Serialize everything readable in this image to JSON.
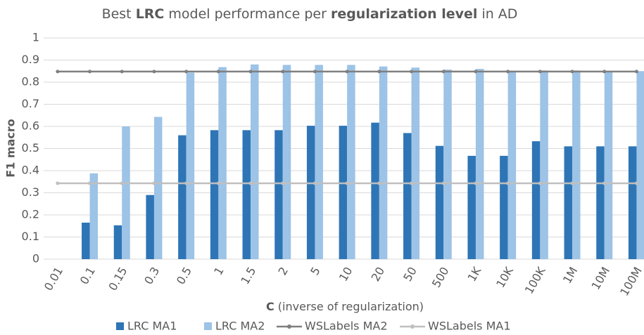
{
  "chart_data": {
    "type": "bar",
    "title": [
      "Best ",
      "LRC",
      " model performance per ",
      "regularization level",
      " in AD"
    ],
    "x_label": [
      "C",
      " (inverse of regularization)"
    ],
    "y_label": "F1 macro",
    "categories": [
      "0.01",
      "0.1",
      "0.15",
      "0.3",
      "0.5",
      "1",
      "1.5",
      "2",
      "5",
      "10",
      "20",
      "50",
      "500",
      "1K",
      "10K",
      "100K",
      "1M",
      "10M",
      "100M"
    ],
    "series": [
      {
        "name": "LRC MA1",
        "type": "bar",
        "color": "#2e75b6",
        "values": [
          null,
          0.165,
          0.153,
          0.29,
          0.56,
          0.583,
          0.583,
          0.583,
          0.603,
          0.603,
          0.617,
          0.57,
          0.512,
          0.467,
          0.467,
          0.533,
          0.51,
          0.51,
          0.51
        ]
      },
      {
        "name": "LRC MA2",
        "type": "bar",
        "color": "#9dc3e6",
        "values": [
          null,
          0.388,
          0.6,
          0.643,
          0.843,
          0.868,
          0.88,
          0.878,
          0.878,
          0.878,
          0.871,
          0.866,
          0.857,
          0.86,
          0.852,
          0.853,
          0.853,
          0.85,
          0.85
        ]
      },
      {
        "name": "WSLabels MA2",
        "type": "line",
        "color": "#7f7f7f",
        "values": [
          0.848,
          0.848,
          0.848,
          0.848,
          0.848,
          0.848,
          0.848,
          0.848,
          0.848,
          0.848,
          0.848,
          0.848,
          0.848,
          0.848,
          0.848,
          0.848,
          0.848,
          0.848,
          0.848
        ]
      },
      {
        "name": "WSLabels MA1",
        "type": "line",
        "color": "#bfbfbf",
        "values": [
          0.343,
          0.343,
          0.343,
          0.343,
          0.343,
          0.343,
          0.343,
          0.343,
          0.343,
          0.343,
          0.343,
          0.343,
          0.343,
          0.343,
          0.343,
          0.343,
          0.343,
          0.343,
          0.343
        ]
      }
    ],
    "ylim": [
      0,
      1
    ],
    "yticks": [
      0,
      0.1,
      0.2,
      0.3,
      0.4,
      0.5,
      0.6,
      0.7,
      0.8,
      0.9,
      1
    ],
    "grid": true,
    "legend": "bottom"
  }
}
